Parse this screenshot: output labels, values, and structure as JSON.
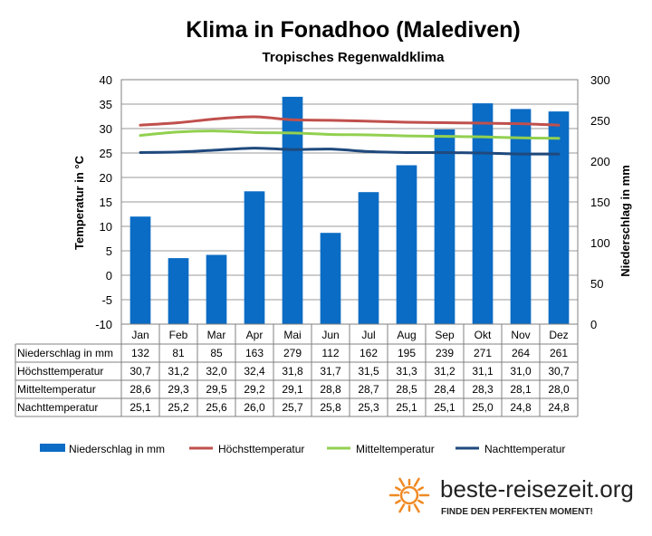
{
  "chart_data": {
    "type": "bar",
    "title": "Klima in Fonadhoo (Malediven)",
    "subtitle": "Tropisches Regenwaldklima",
    "categories": [
      "Jan",
      "Feb",
      "Mar",
      "Apr",
      "Mai",
      "Jun",
      "Jul",
      "Aug",
      "Sep",
      "Okt",
      "Nov",
      "Dez"
    ],
    "y_left": {
      "label": "Temperatur in °C",
      "ylim": [
        -10,
        40
      ],
      "ticks": [
        "-10",
        "-5",
        "0",
        "5",
        "10",
        "15",
        "20",
        "25",
        "30",
        "35",
        "40"
      ]
    },
    "y_right": {
      "label": "Niederschlag in mm",
      "ylim": [
        0,
        300
      ],
      "ticks": [
        "0",
        "50",
        "100",
        "150",
        "200",
        "250",
        "300"
      ]
    },
    "grid": true,
    "legend_position": "bottom",
    "series": [
      {
        "name": "Niederschlag in mm",
        "type": "bar",
        "axis": "right",
        "color": "#0a6cc4",
        "values": [
          132,
          81,
          85,
          163,
          279,
          112,
          162,
          195,
          239,
          271,
          264,
          261
        ],
        "labels": [
          "132",
          "81",
          "85",
          "163",
          "279",
          "112",
          "162",
          "195",
          "239",
          "271",
          "264",
          "261"
        ]
      },
      {
        "name": "Höchsttemperatur",
        "type": "line",
        "axis": "left",
        "color": "#c0504d",
        "values": [
          30.7,
          31.2,
          32.0,
          32.4,
          31.8,
          31.7,
          31.5,
          31.3,
          31.2,
          31.1,
          31.0,
          30.7
        ],
        "labels": [
          "30,7",
          "31,2",
          "32,0",
          "32,4",
          "31,8",
          "31,7",
          "31,5",
          "31,3",
          "31,2",
          "31,1",
          "31,0",
          "30,7"
        ]
      },
      {
        "name": "Mitteltemperatur",
        "type": "line",
        "axis": "left",
        "color": "#92d050",
        "values": [
          28.6,
          29.3,
          29.5,
          29.2,
          29.1,
          28.8,
          28.7,
          28.5,
          28.4,
          28.3,
          28.1,
          28.0
        ],
        "labels": [
          "28,6",
          "29,3",
          "29,5",
          "29,2",
          "29,1",
          "28,8",
          "28,7",
          "28,5",
          "28,4",
          "28,3",
          "28,1",
          "28,0"
        ]
      },
      {
        "name": "Nachttemperatur",
        "type": "line",
        "axis": "left",
        "color": "#1f497d",
        "values": [
          25.1,
          25.2,
          25.6,
          26.0,
          25.7,
          25.8,
          25.3,
          25.1,
          25.1,
          25.0,
          24.8,
          24.8
        ],
        "labels": [
          "25,1",
          "25,2",
          "25,6",
          "26,0",
          "25,7",
          "25,8",
          "25,3",
          "25,1",
          "25,1",
          "25,0",
          "24,8",
          "24,8"
        ]
      }
    ]
  },
  "branding": {
    "name": "beste-reisezeit.org",
    "slogan": "FINDE DEN PERFEKTEN MOMENT!",
    "logo_icon": "sun-icon",
    "logo_color": "#f08a24"
  }
}
